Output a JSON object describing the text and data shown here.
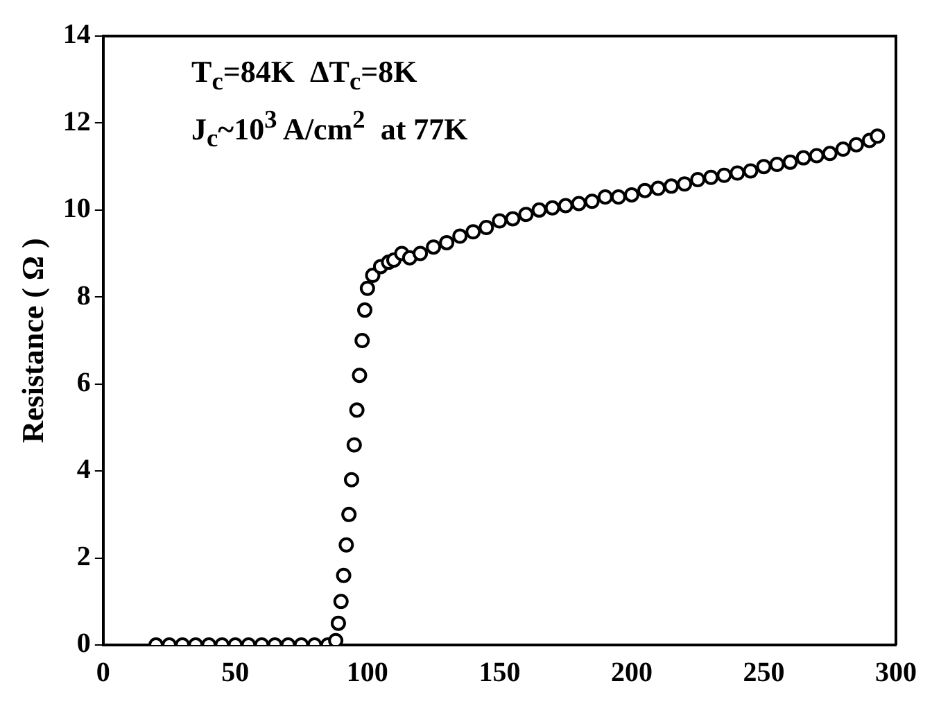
{
  "chart_data": {
    "type": "scatter",
    "ylabel": "Resistance ( Ω )",
    "annotations": [
      "T$_{c}$=84K  ΔT$_{c}$=8K",
      "J$_{c}$~10$^{3}$ A/cm$^{2}$  at 77K"
    ],
    "x": [
      20,
      25,
      30,
      35,
      40,
      45,
      50,
      55,
      60,
      65,
      70,
      75,
      80,
      85,
      88,
      89,
      90,
      91,
      92,
      93,
      94,
      95,
      96,
      97,
      98,
      99,
      100,
      102,
      105,
      108,
      110,
      113,
      116,
      120,
      125,
      130,
      135,
      140,
      145,
      150,
      155,
      160,
      165,
      170,
      175,
      180,
      185,
      190,
      195,
      200,
      205,
      210,
      215,
      220,
      225,
      230,
      235,
      240,
      245,
      250,
      255,
      260,
      265,
      270,
      275,
      280,
      285,
      290,
      293
    ],
    "series": [
      {
        "color": "#000000",
        "values": [
          0,
          0,
          0,
          0,
          0,
          0,
          0,
          0,
          0,
          0,
          0,
          0,
          0,
          0,
          0.1,
          0.5,
          1.0,
          1.6,
          2.3,
          3.0,
          3.8,
          4.6,
          5.4,
          6.2,
          7.0,
          7.7,
          8.2,
          8.5,
          8.7,
          8.8,
          8.85,
          9.0,
          8.9,
          9.0,
          9.15,
          9.25,
          9.4,
          9.5,
          9.6,
          9.75,
          9.8,
          9.9,
          10.0,
          10.05,
          10.1,
          10.15,
          10.2,
          10.3,
          10.3,
          10.35,
          10.45,
          10.5,
          10.55,
          10.6,
          10.7,
          10.75,
          10.8,
          10.85,
          10.9,
          11.0,
          11.05,
          11.1,
          11.2,
          11.25,
          11.3,
          11.4,
          11.5,
          11.6,
          11.7
        ]
      }
    ],
    "xlim": [
      0,
      300
    ],
    "xticks": [
      0,
      50,
      100,
      150,
      200,
      250,
      300
    ],
    "ylim": [
      0,
      14
    ],
    "yticks": [
      0,
      2,
      4,
      6,
      8,
      10,
      12,
      14
    ],
    "marker": "circle",
    "grid": false,
    "legend": false
  }
}
